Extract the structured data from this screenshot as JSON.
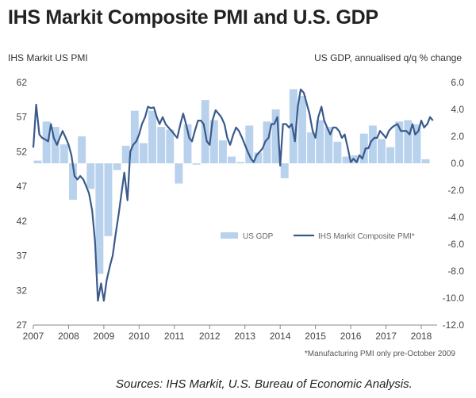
{
  "header": {
    "title": "IHS Markit Composite PMI and U.S. GDP",
    "left_axis_title": "IHS Markit US PMI",
    "right_axis_title": "US GDP, annualised q/q % change"
  },
  "footnote": "*Manufacturing PMI only pre-October 2009",
  "sources": "Sources:  IHS Markit, U.S. Bureau of Economic Analysis.",
  "colors": {
    "gdp": "#b8d1ec",
    "pmi": "#3a5a8c",
    "text": "#333333"
  },
  "chart_data": {
    "type": "bar+line",
    "left_axis": {
      "label": "IHS Markit US PMI",
      "ylim": [
        27,
        62
      ],
      "ticks": [
        27,
        32,
        37,
        42,
        47,
        52,
        57,
        62
      ]
    },
    "right_axis": {
      "label": "US GDP, annualised q/q % change",
      "ylim": [
        -12,
        6
      ],
      "ticks": [
        "-12.0",
        "-10.0",
        "-8.0",
        "-6.0",
        "-4.0",
        "-2.0",
        "0.0",
        "2.0",
        "4.0",
        "6.0"
      ]
    },
    "x_ticks": [
      "2007",
      "2008",
      "2009",
      "2010",
      "2011",
      "2012",
      "2013",
      "2014",
      "2015",
      "2016",
      "2017",
      "2018"
    ],
    "grid": false,
    "legend": {
      "position": "bottom-right",
      "entries": [
        "US GDP",
        "IHS Markit Composite PMI*"
      ]
    },
    "series": [
      {
        "name": "US GDP",
        "type": "bar",
        "axis": "right",
        "x": [
          2007.0,
          2007.25,
          2007.5,
          2007.75,
          2008.0,
          2008.25,
          2008.5,
          2008.75,
          2009.0,
          2009.25,
          2009.5,
          2009.75,
          2010.0,
          2010.25,
          2010.5,
          2010.75,
          2011.0,
          2011.25,
          2011.5,
          2011.75,
          2012.0,
          2012.25,
          2012.5,
          2012.75,
          2013.0,
          2013.25,
          2013.5,
          2013.75,
          2014.0,
          2014.25,
          2014.5,
          2014.75,
          2015.0,
          2015.25,
          2015.5,
          2015.75,
          2016.0,
          2016.25,
          2016.5,
          2016.75,
          2017.0,
          2017.25,
          2017.5,
          2017.75,
          2018.0
        ],
        "values": [
          0.2,
          3.1,
          2.7,
          1.4,
          -2.7,
          2.0,
          -1.9,
          -8.2,
          -5.4,
          -0.5,
          1.3,
          3.9,
          1.5,
          3.9,
          2.7,
          2.5,
          -1.5,
          2.9,
          -0.1,
          4.7,
          3.2,
          1.7,
          0.5,
          0.1,
          2.8,
          0.8,
          3.1,
          4.0,
          -1.1,
          5.5,
          5.0,
          2.3,
          3.2,
          2.7,
          1.6,
          0.5,
          0.6,
          2.2,
          2.8,
          1.8,
          1.2,
          3.1,
          3.2,
          2.9,
          0.3
        ]
      },
      {
        "name": "IHS Markit Composite PMI*",
        "type": "line",
        "axis": "left",
        "x": [
          2007.0,
          2007.08,
          2007.17,
          2007.25,
          2007.33,
          2007.42,
          2007.5,
          2007.58,
          2007.67,
          2007.75,
          2007.83,
          2007.92,
          2008.0,
          2008.08,
          2008.17,
          2008.25,
          2008.33,
          2008.42,
          2008.5,
          2008.58,
          2008.67,
          2008.75,
          2008.83,
          2008.92,
          2009.0,
          2009.08,
          2009.17,
          2009.25,
          2009.33,
          2009.42,
          2009.5,
          2009.58,
          2009.67,
          2009.75,
          2009.83,
          2009.92,
          2010.0,
          2010.08,
          2010.17,
          2010.25,
          2010.33,
          2010.42,
          2010.5,
          2010.58,
          2010.67,
          2010.75,
          2010.83,
          2010.92,
          2011.0,
          2011.08,
          2011.17,
          2011.25,
          2011.33,
          2011.42,
          2011.5,
          2011.58,
          2011.67,
          2011.75,
          2011.83,
          2011.92,
          2012.0,
          2012.08,
          2012.17,
          2012.25,
          2012.33,
          2012.42,
          2012.5,
          2012.58,
          2012.67,
          2012.75,
          2012.83,
          2012.92,
          2013.0,
          2013.08,
          2013.17,
          2013.25,
          2013.33,
          2013.42,
          2013.5,
          2013.58,
          2013.67,
          2013.75,
          2013.83,
          2013.92,
          2014.0,
          2014.08,
          2014.17,
          2014.25,
          2014.33,
          2014.42,
          2014.5,
          2014.58,
          2014.67,
          2014.75,
          2014.83,
          2014.92,
          2015.0,
          2015.08,
          2015.17,
          2015.25,
          2015.33,
          2015.42,
          2015.5,
          2015.58,
          2015.67,
          2015.75,
          2015.83,
          2015.92,
          2016.0,
          2016.08,
          2016.17,
          2016.25,
          2016.33,
          2016.42,
          2016.5,
          2016.58,
          2016.67,
          2016.75,
          2016.83,
          2016.92,
          2017.0,
          2017.08,
          2017.17,
          2017.25,
          2017.33,
          2017.42,
          2017.5,
          2017.58,
          2017.67,
          2017.75,
          2017.83,
          2017.92,
          2018.0,
          2018.08,
          2018.17,
          2018.25,
          2018.33
        ],
        "values": [
          52.6,
          58.8,
          54.5,
          54.0,
          53.8,
          53.5,
          56.0,
          54.0,
          53.0,
          54.0,
          55.0,
          54.0,
          53.0,
          51.5,
          48.5,
          48.0,
          48.5,
          48.0,
          47.0,
          46.0,
          43.5,
          39.0,
          30.5,
          33.0,
          30.5,
          33.5,
          35.5,
          37.0,
          40.0,
          43.0,
          46.0,
          49.0,
          45.0,
          52.0,
          53.0,
          53.5,
          54.5,
          56.0,
          57.0,
          58.5,
          58.3,
          58.4,
          57.0,
          56.0,
          57.0,
          56.0,
          55.5,
          55.0,
          54.5,
          54.0,
          56.0,
          57.5,
          56.0,
          54.0,
          53.5,
          55.0,
          56.5,
          56.5,
          56.0,
          53.5,
          53.0,
          56.5,
          58.0,
          57.5,
          57.0,
          56.0,
          54.0,
          53.0,
          54.5,
          55.5,
          55.0,
          54.0,
          53.0,
          52.0,
          51.0,
          50.5,
          51.5,
          52.0,
          52.5,
          53.5,
          54.0,
          56.0,
          56.0,
          57.0,
          50.0,
          56.0,
          56.0,
          55.5,
          56.0,
          53.5,
          58.5,
          61.0,
          60.5,
          59.0,
          57.5,
          55.0,
          54.0,
          57.0,
          58.5,
          56.5,
          55.5,
          54.5,
          55.5,
          55.5,
          55.0,
          54.0,
          54.5,
          52.5,
          50.5,
          51.0,
          50.5,
          51.5,
          51.0,
          52.5,
          52.5,
          53.5,
          54.0,
          54.0,
          55.0,
          54.5,
          54.0,
          55.0,
          55.5,
          55.8,
          56.0,
          55.0,
          55.0,
          55.0,
          54.5,
          56.0,
          54.5,
          55.0,
          56.5,
          55.5,
          56.0,
          57.0,
          56.5
        ]
      }
    ]
  }
}
